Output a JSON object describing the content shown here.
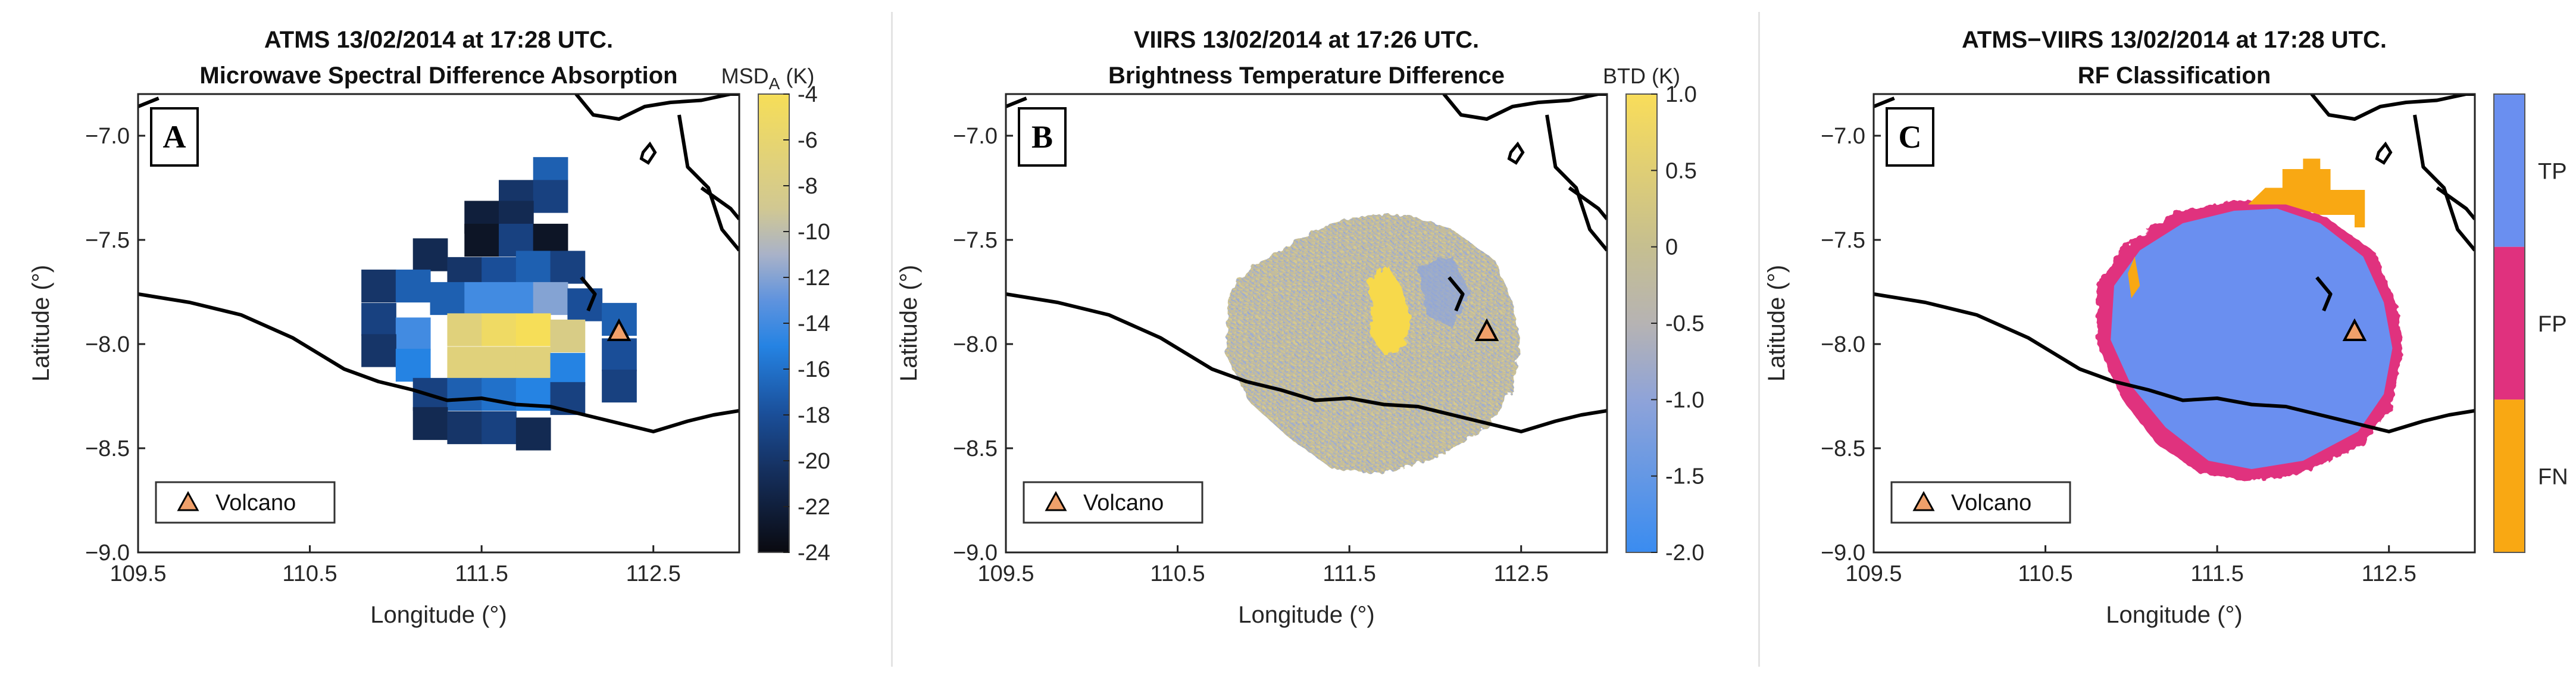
{
  "panels": [
    {
      "id": "A",
      "title_line1": "ATMS 13/02/2014 at 17:28 UTC.",
      "title_line2": "Microwave Spectral Difference Absorption",
      "xlabel": "Longitude (°)",
      "ylabel": "Latitude (°)",
      "legend_label": "Volcano",
      "colorbar": {
        "label_main": "MSD",
        "label_sub": "A",
        "label_unit": " (K)",
        "range": [
          -24,
          -4
        ],
        "ticks": [
          "-4",
          "-6",
          "-8",
          "-10",
          "-12",
          "-14",
          "-16",
          "-18",
          "-20",
          "-22",
          "-24"
        ],
        "tick_values": [
          -4,
          -6,
          -8,
          -10,
          -12,
          -14,
          -16,
          -18,
          -20,
          -22,
          -24
        ]
      }
    },
    {
      "id": "B",
      "title_line1": "VIIRS 13/02/2014 at 17:26 UTC.",
      "title_line2": "Brightness Temperature Difference",
      "xlabel": "Longitude (°)",
      "ylabel": "Latitude (°)",
      "legend_label": "Volcano",
      "colorbar": {
        "label_main": "BTD (K)",
        "label_sub": "",
        "label_unit": "",
        "range": [
          -2.0,
          1.0
        ],
        "ticks": [
          "1.0",
          "0.5",
          "0",
          "-0.5",
          "-1.0",
          "-1.5",
          "-2.0"
        ],
        "tick_values": [
          1.0,
          0.5,
          0,
          -0.5,
          -1.0,
          -1.5,
          -2.0
        ]
      }
    },
    {
      "id": "C",
      "title_line1": "ATMS−VIIRS 13/02/2014 at 17:28 UTC.",
      "title_line2": "RF Classification",
      "xlabel": "Longitude (°)",
      "ylabel": "Latitude (°)",
      "legend_label": "Volcano",
      "categories": [
        {
          "label": "TP",
          "color": "#6a8ff0"
        },
        {
          "label": "FP",
          "color": "#e0317e"
        },
        {
          "label": "FN",
          "color": "#f9a813"
        }
      ]
    }
  ],
  "chart_data": [
    {
      "type": "heatmap",
      "panel": "A",
      "xlim": [
        109.5,
        113.0
      ],
      "ylim": [
        -9.0,
        -6.8
      ],
      "x_ticks": [
        109.5,
        110.5,
        111.5,
        112.5
      ],
      "x_tick_labels": [
        "109.5",
        "110.5",
        "111.5",
        "112.5"
      ],
      "y_ticks": [
        -7.0,
        -7.5,
        -8.0,
        -8.5,
        -9.0
      ],
      "y_tick_labels": [
        "−7.0",
        "−7.5",
        "−8.0",
        "−8.5",
        "−9.0"
      ],
      "volcano": {
        "lon": 112.3,
        "lat": -7.94
      },
      "grid": false,
      "legend_position": "bottom-left",
      "cells": [
        {
          "lon": 111.9,
          "lat": -7.18,
          "value": -17
        },
        {
          "lon": 111.7,
          "lat": -7.29,
          "value": -20
        },
        {
          "lon": 111.9,
          "lat": -7.29,
          "value": -19
        },
        {
          "lon": 111.5,
          "lat": -7.39,
          "value": -22
        },
        {
          "lon": 111.7,
          "lat": -7.39,
          "value": -21
        },
        {
          "lon": 111.5,
          "lat": -7.5,
          "value": -23
        },
        {
          "lon": 111.7,
          "lat": -7.5,
          "value": -19
        },
        {
          "lon": 111.9,
          "lat": -7.5,
          "value": -23
        },
        {
          "lon": 111.2,
          "lat": -7.57,
          "value": -21
        },
        {
          "lon": 111.4,
          "lat": -7.66,
          "value": -20
        },
        {
          "lon": 111.6,
          "lat": -7.66,
          "value": -18
        },
        {
          "lon": 111.8,
          "lat": -7.63,
          "value": -17
        },
        {
          "lon": 112.0,
          "lat": -7.63,
          "value": -19
        },
        {
          "lon": 110.9,
          "lat": -7.72,
          "value": -20
        },
        {
          "lon": 111.1,
          "lat": -7.72,
          "value": -17
        },
        {
          "lon": 111.3,
          "lat": -7.78,
          "value": -17
        },
        {
          "lon": 111.5,
          "lat": -7.78,
          "value": -14
        },
        {
          "lon": 111.7,
          "lat": -7.78,
          "value": -14
        },
        {
          "lon": 111.9,
          "lat": -7.78,
          "value": -12
        },
        {
          "lon": 112.1,
          "lat": -7.81,
          "value": -18
        },
        {
          "lon": 112.3,
          "lat": -7.88,
          "value": -17
        },
        {
          "lon": 110.9,
          "lat": -7.88,
          "value": -19
        },
        {
          "lon": 111.1,
          "lat": -7.95,
          "value": -14
        },
        {
          "lon": 111.4,
          "lat": -7.93,
          "value": -7
        },
        {
          "lon": 111.6,
          "lat": -7.93,
          "value": -5
        },
        {
          "lon": 111.8,
          "lat": -7.93,
          "value": -4
        },
        {
          "lon": 112.0,
          "lat": -7.96,
          "value": -8
        },
        {
          "lon": 112.3,
          "lat": -8.05,
          "value": -18
        },
        {
          "lon": 110.9,
          "lat": -8.03,
          "value": -20
        },
        {
          "lon": 111.1,
          "lat": -8.1,
          "value": -15
        },
        {
          "lon": 111.4,
          "lat": -8.09,
          "value": -7
        },
        {
          "lon": 111.6,
          "lat": -8.09,
          "value": -7
        },
        {
          "lon": 111.8,
          "lat": -8.09,
          "value": -7
        },
        {
          "lon": 112.0,
          "lat": -8.12,
          "value": -15
        },
        {
          "lon": 112.3,
          "lat": -8.2,
          "value": -19
        },
        {
          "lon": 111.2,
          "lat": -8.24,
          "value": -19
        },
        {
          "lon": 111.4,
          "lat": -8.24,
          "value": -17
        },
        {
          "lon": 111.6,
          "lat": -8.24,
          "value": -16
        },
        {
          "lon": 111.8,
          "lat": -8.24,
          "value": -15
        },
        {
          "lon": 112.0,
          "lat": -8.26,
          "value": -19
        },
        {
          "lon": 111.2,
          "lat": -8.38,
          "value": -21
        },
        {
          "lon": 111.4,
          "lat": -8.4,
          "value": -20
        },
        {
          "lon": 111.6,
          "lat": -8.4,
          "value": -19
        },
        {
          "lon": 111.8,
          "lat": -8.43,
          "value": -21
        }
      ]
    },
    {
      "type": "heatmap",
      "panel": "B",
      "xlim": [
        109.5,
        113.0
      ],
      "ylim": [
        -9.0,
        -6.8
      ],
      "x_ticks": [
        109.5,
        110.5,
        111.5,
        112.5
      ],
      "x_tick_labels": [
        "109.5",
        "110.5",
        "111.5",
        "112.5"
      ],
      "y_ticks": [
        -7.0,
        -7.5,
        -8.0,
        -8.5,
        -9.0
      ],
      "y_tick_labels": [
        "−7.0",
        "−7.5",
        "−8.0",
        "−8.5",
        "−9.0"
      ],
      "volcano": {
        "lon": 112.3,
        "lat": -7.94
      },
      "grid": false,
      "legend_position": "bottom-left",
      "region_mean_btd": -0.1,
      "hotspot_btd": 0.9
    },
    {
      "type": "heatmap",
      "panel": "C",
      "xlim": [
        109.5,
        113.0
      ],
      "ylim": [
        -9.0,
        -6.8
      ],
      "x_ticks": [
        109.5,
        110.5,
        111.5,
        112.5
      ],
      "x_tick_labels": [
        "109.5",
        "110.5",
        "111.5",
        "112.5"
      ],
      "y_ticks": [
        -7.0,
        -7.5,
        -8.0,
        -8.5,
        -9.0
      ],
      "y_tick_labels": [
        "−7.0",
        "−7.5",
        "−8.0",
        "−8.5",
        "−9.0"
      ],
      "volcano": {
        "lon": 112.3,
        "lat": -7.94
      },
      "grid": false,
      "legend_position": "bottom-left",
      "classes": [
        "TP",
        "FP",
        "FN"
      ]
    }
  ]
}
